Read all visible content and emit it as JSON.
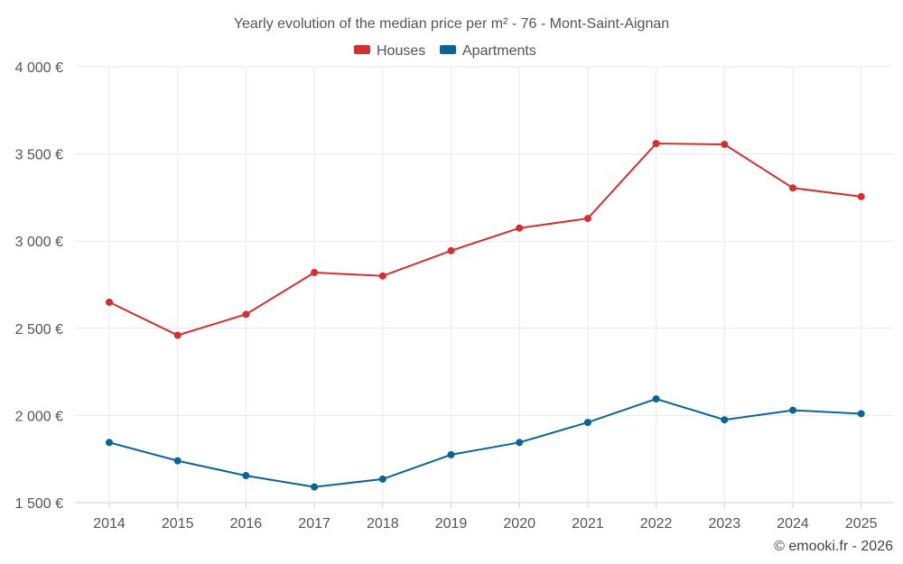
{
  "chart_data": {
    "type": "line",
    "title": "Yearly evolution of the median price per m² - 76 - Mont-Saint-Aignan",
    "xlabel": "",
    "ylabel": "",
    "categories": [
      "2014",
      "2015",
      "2016",
      "2017",
      "2018",
      "2019",
      "2020",
      "2021",
      "2022",
      "2023",
      "2024",
      "2025"
    ],
    "ylim": [
      1500,
      4000
    ],
    "yticks": [
      1500,
      2000,
      2500,
      3000,
      3500,
      4000
    ],
    "ytick_labels": [
      "1 500 €",
      "2 000 €",
      "2 500 €",
      "3 000 €",
      "3 500 €",
      "4 000 €"
    ],
    "grid": true,
    "legend_position": "top-center",
    "series": [
      {
        "name": "Houses",
        "color": "#d32f2f",
        "values": [
          2650,
          2460,
          2580,
          2820,
          2800,
          2945,
          3075,
          3130,
          3560,
          3555,
          3305,
          3255
        ]
      },
      {
        "name": "Apartments",
        "color": "#0b6497",
        "values": [
          1845,
          1740,
          1655,
          1590,
          1635,
          1775,
          1845,
          1960,
          2095,
          1975,
          2030,
          2010
        ]
      }
    ]
  },
  "credit": "© emooki.fr - 2026"
}
